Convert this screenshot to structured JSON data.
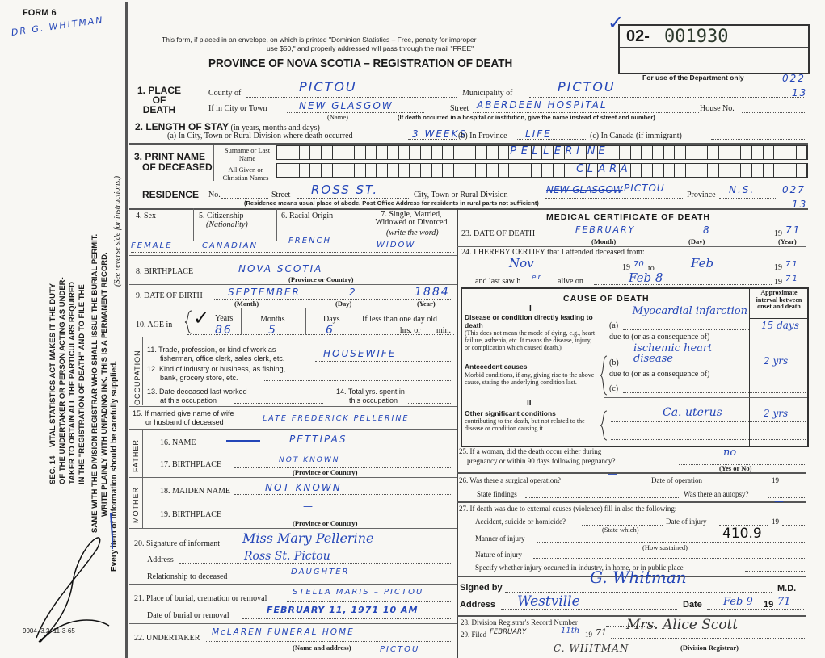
{
  "margin": {
    "form_no": "FORM 6",
    "annotation": "DR G. WHITMAN",
    "statute": [
      "SEC. 14 – VITAL STATISTICS ACT MAKES IT THE DUTY",
      "OF THE UNDERTAKER OR PERSON ACTING AS UNDER-",
      "TAKER TO OBTAIN ALL THE PARTICULARS REQUIRED",
      "IN THE \"REGISTRATION OF DEATH\" AND TO FILE THE",
      "SAME WITH THE DIVISION REGISTRAR WHO SHALL ISSUE THE BURIAL PERMIT.",
      "WRITE PLAINLY WITH UNFADING INK. THIS IS A PERMANENT RECORD."
    ],
    "reverse_note": "(See reverse side for instructions.)",
    "every_item": "Every item of information should be carefully supplied.",
    "print_code": "9004–3.2: 11-3-65"
  },
  "header": {
    "notice_1": "This form, if placed in an envelope, on which is printed \"Dominion Statistics – Free, penalty for improper",
    "notice_2": "use $50,\" and properly addressed will pass through the mail \"FREE\"",
    "title": "PROVINCE OF NOVA SCOTIA – REGISTRATION OF DEATH",
    "serial_prefix": "02-",
    "serial_number": "001930",
    "dept_only": "For use of the Department only",
    "dept_code_1": "022",
    "dept_code_2": "13",
    "check": "✓"
  },
  "place": {
    "label": "1. PLACE OF DEATH",
    "county_label": "County of",
    "county": "PICTOU",
    "municipality_label": "Municipality of",
    "municipality": "PICTOU",
    "city_label": "If in City or Town",
    "city": "NEW GLASGOW",
    "name_hint": "(Name)",
    "street_label": "Street",
    "street": "ABERDEEN HOSPITAL",
    "house_label": "House No.",
    "hospital_hint": "(If death occurred in a hospital or institution, give the name instead of street and number)"
  },
  "stay": {
    "label": "2. LENGTH OF STAY",
    "label_hint": "(in years, months and days)",
    "a_label": "(a) In City, Town or Rural Division where death occurred",
    "a": "3 WEEKS",
    "b_label": "(b) In Province",
    "b": "LIFE",
    "c_label": "(c) In Canada (if immigrant)"
  },
  "name": {
    "label_1": "3. PRINT NAME",
    "label_2": "OF DECEASED",
    "surname_label": "Surname or Last Name",
    "surname_letters": [
      "P",
      "E",
      "L",
      "L",
      "E",
      "R",
      "I",
      "N",
      "E"
    ],
    "given_label": "All Given or Christian Names",
    "given_letters": [
      "C",
      "L",
      "A",
      "R",
      "A"
    ]
  },
  "residence": {
    "label": "RESIDENCE",
    "no_label": "No.",
    "street_label": "Street",
    "street": "ROSS ST.",
    "city_label": "City, Town or Rural Division",
    "city_struck": "NEW GLASGOW",
    "city": "PICTOU",
    "province_label": "Province",
    "province": "N.S.",
    "code_1": "027",
    "code_2": "13",
    "hint": "(Residence means usual place of abode. Post Office Address for residents in rural parts not sufficient)"
  },
  "personal": {
    "sex_label": "4. Sex",
    "sex": "FEMALE",
    "citizenship_label": "5. Citizenship",
    "citizenship_hint": "(Nationality)",
    "citizenship": "CANADIAN",
    "racial_label": "6. Racial Origin",
    "racial": "FRENCH",
    "marital_label": "7. Single, Married, Widowed or Divorced",
    "marital_hint": "(write the word)",
    "marital": "WIDOW",
    "birthplace_label": "8. BIRTHPLACE",
    "birthplace": "NOVA SCOTIA",
    "prov_hint": "(Province or Country)",
    "dob_label": "9. DATE OF BIRTH",
    "dob_month": "SEPTEMBER",
    "dob_day": "2",
    "dob_year": "1884",
    "month_hint": "(Month)",
    "day_hint": "(Day)",
    "year_hint": "(Year)",
    "age_label": "10. AGE in",
    "years_label": "Years",
    "years": "86",
    "months_label": "Months",
    "months": "5",
    "days_label": "Days",
    "days": "6",
    "less_label": "If less than one day old",
    "hrs_label": "hrs. or",
    "min_label": "min."
  },
  "occupation": {
    "side": "OCCUPATION",
    "q11": "11. Trade, profession, or kind of work as",
    "q11b": "fisherman, office clerk, sales clerk, etc.",
    "a11": "HOUSEWIFE",
    "q12": "12. Kind of industry or business, as fishing,",
    "q12b": "bank, grocery store, etc.",
    "q13": "13. Date deceased last worked",
    "q13b": "at this occupation",
    "q14": "14. Total yrs. spent in",
    "q14b": "this occupation",
    "q15": "15. If married give name of wife",
    "q15b": "or husband of deceased",
    "a15": "LATE FREDERICK PELLERINE"
  },
  "father": {
    "side": "FATHER",
    "name_label": "16. NAME",
    "name": "PETTIPAS",
    "birthplace_label": "17. BIRTHPLACE",
    "birthplace": "NOT KNOWN"
  },
  "mother": {
    "side": "MOTHER",
    "maiden_label": "18. MAIDEN NAME",
    "maiden": "NOT KNOWN",
    "birthplace_label": "19. BIRTHPLACE",
    "birthplace": "—"
  },
  "informant": {
    "sig_label": "20. Signature of informant",
    "signature": "Miss Mary Pellerine",
    "address_label": "Address",
    "address": "Ross St. Pictou",
    "rel_label": "Relationship to deceased",
    "relationship": "DAUGHTER"
  },
  "burial": {
    "place_label": "21. Place of burial, cremation or removal",
    "place": "STELLA MARIS – PICTOU",
    "date_label": "Date of burial or removal",
    "date": "FEBRUARY 11, 1971 10 AM"
  },
  "undertaker": {
    "label": "22. UNDERTAKER",
    "name": "McLAREN FUNERAL HOME",
    "hint": "(Name and address)",
    "town": "PICTOU"
  },
  "medical": {
    "title": "MEDICAL CERTIFICATE OF DEATH",
    "dod_label": "23. DATE OF DEATH",
    "dod_month": "FEBRUARY",
    "dod_day": "8",
    "dod_year": "71",
    "nineteen": "19",
    "attend_label": "24. I HEREBY CERTIFY that I attended deceased from:",
    "from": "Nov",
    "from_year": "70",
    "to_label": "to",
    "to": "Feb",
    "to_year": "71",
    "last_saw_label": "and last saw h",
    "last_saw_pron": "er",
    "alive_label": "alive on",
    "last_saw": "Feb 8",
    "last_year": "71"
  },
  "cause": {
    "title": "CAUSE OF DEATH",
    "interval_label": "Approximate interval between onset and death",
    "part1": "I",
    "direct_title": "Disease or condition directly leading to death",
    "direct_text": "(This does not mean the mode of dying, e.g., heart failure, asthenia, etc. It means the disease, injury, or complication which caused death.)",
    "a_label": "(a)",
    "a": "Myocardial infarction",
    "a_interval": "15 days",
    "due": "due to (or as a consequence of)",
    "antecedent_title": "Antecedent causes",
    "antecedent_text": "Morbid conditions, if any, giving rise to the above cause, stating the underlying condition last.",
    "b_label": "(b)",
    "b": "ischemic heart disease",
    "b_interval": "2 yrs",
    "c_label": "(c)",
    "part2": "II",
    "other_title": "Other significant conditions",
    "other_text": "contributing to the death, but not related to the disease or condition causing it.",
    "other": "Ca. uterus",
    "other_interval": "2 yrs"
  },
  "q25": {
    "q": "25. If a woman, did the death occur either during",
    "q2": "pregnancy or within 90 days following pregnancy?",
    "a": "no",
    "hint": "(Yes or No)"
  },
  "q26": {
    "q": "26. Was there a surgical operation?",
    "a": "—",
    "date_label": "Date of operation",
    "nineteen": "19",
    "findings_label": "State findings",
    "autopsy_label": "Was there an autopsy?"
  },
  "q27": {
    "q": "27. If death was due to external causes (violence) fill in also the following: –",
    "a": "—",
    "accident_label": "Accident, suicide or homicide?",
    "state_hint": "(State which)",
    "injury_date_label": "Date of injury",
    "nineteen": "19",
    "manner_label": "Manner of injury",
    "how_hint": "(How sustained)",
    "code": "410.9",
    "nature_label": "Nature of injury",
    "specify_label": "Specify whether injury occurred in industry, in home, or in public place"
  },
  "signoff": {
    "signed_label": "Signed by",
    "signature": "G. Whitman",
    "md": "M.D.",
    "address_label": "Address",
    "address": "Westville",
    "date_label": "Date",
    "date": "Feb 9",
    "nineteen": "19",
    "year": "71"
  },
  "registrar": {
    "q28": "28. Division Registrar's Record Number",
    "q29": "29. Filed",
    "filed_month": "FEBRUARY",
    "filed_day": "11th",
    "nineteen": "19",
    "filed_year": "71",
    "signature": "Mrs. Alice Scott",
    "hint": "(Division Registrar)",
    "note": "C. WHITMAN"
  },
  "colors": {
    "ink": "#2446b8",
    "print": "#1b1b1b",
    "paper": "#f8f7f3"
  }
}
